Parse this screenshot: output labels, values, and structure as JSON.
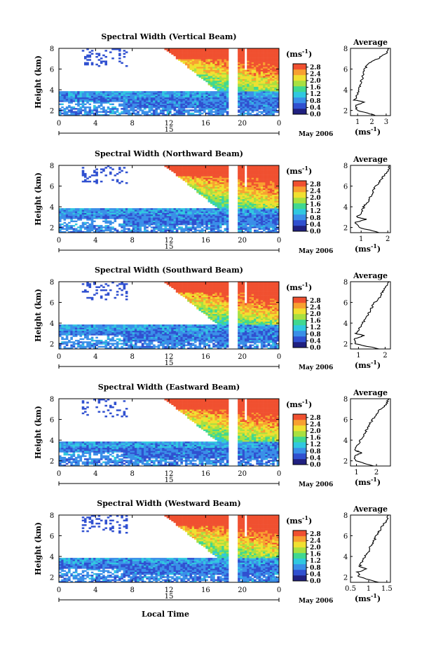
{
  "figure": {
    "bottom_xlabel": "Local Time"
  },
  "chart_data": [
    {
      "type": "heatmap",
      "title": "Spectral Width (Vertical Beam)",
      "ylabel": "Height (km)",
      "unit_label": "(ms",
      "unit_exp": "-1",
      "xlim": [
        0,
        24
      ],
      "xticks": [
        "0",
        "4",
        "8",
        "12",
        "16",
        "20",
        "0"
      ],
      "ylim": [
        1.5,
        8
      ],
      "yticks": [
        "2",
        "4",
        "6",
        "8"
      ],
      "date_day": "15",
      "date_text": "May 2006",
      "colorbar_ticks": [
        "0.0",
        "0.4",
        "0.8",
        "1.2",
        "1.6",
        "2.0",
        "2.4",
        "2.8"
      ],
      "colorbar_range": [
        0.0,
        3.0
      ],
      "profile": {
        "title": "Average",
        "xlabel": "(ms",
        "xlabel_exp": "-1",
        "xticks": [
          "1",
          "2",
          "3"
        ],
        "xlim": [
          0.5,
          3.3
        ],
        "ylim": [
          1.5,
          8
        ],
        "yticks": [
          "2",
          "4",
          "6",
          "8"
        ],
        "height": [
          1.5,
          2.0,
          2.5,
          2.8,
          3.0,
          3.4,
          4.0,
          4.5,
          5.0,
          5.5,
          6.0,
          6.5,
          7.0,
          7.5,
          8.0
        ],
        "width": [
          2.3,
          1.0,
          0.8,
          1.5,
          0.8,
          0.9,
          1.1,
          1.2,
          1.3,
          1.4,
          1.5,
          1.7,
          2.4,
          3.0,
          3.2
        ]
      }
    },
    {
      "type": "heatmap",
      "title": "Spectral Width (Northward Beam)",
      "ylabel": "Height (km)",
      "unit_label": "(ms",
      "unit_exp": "-1",
      "xlim": [
        0,
        24
      ],
      "xticks": [
        "0",
        "4",
        "8",
        "12",
        "16",
        "20",
        "0"
      ],
      "ylim": [
        1.5,
        8
      ],
      "yticks": [
        "2",
        "4",
        "6",
        "8"
      ],
      "date_day": "15",
      "date_text": "May 2006",
      "colorbar_ticks": [
        "0.0",
        "0.4",
        "0.8",
        "1.2",
        "1.6",
        "2.0",
        "2.4",
        "2.8"
      ],
      "colorbar_range": [
        0.0,
        3.0
      ],
      "profile": {
        "title": "Average",
        "xlabel": "(ms",
        "xlabel_exp": "-1",
        "xticks": [
          "1",
          "2"
        ],
        "xlim": [
          0.6,
          2.1
        ],
        "ylim": [
          1.5,
          8
        ],
        "yticks": [
          "2",
          "4",
          "6",
          "8"
        ],
        "height": [
          1.5,
          2.0,
          2.5,
          2.8,
          3.0,
          3.4,
          4.0,
          4.5,
          5.0,
          5.5,
          6.0,
          6.5,
          7.0,
          7.5,
          8.0
        ],
        "width": [
          1.7,
          0.9,
          0.8,
          1.2,
          0.85,
          1.0,
          1.1,
          1.25,
          1.35,
          1.45,
          1.55,
          1.7,
          1.85,
          2.0,
          2.05
        ]
      }
    },
    {
      "type": "heatmap",
      "title": "Spectral Width (Southward Beam)",
      "ylabel": "Height (km)",
      "unit_label": "(ms",
      "unit_exp": "-1",
      "xlim": [
        0,
        24
      ],
      "xticks": [
        "0",
        "4",
        "8",
        "12",
        "16",
        "20",
        "0"
      ],
      "ylim": [
        1.5,
        8
      ],
      "yticks": [
        "2",
        "4",
        "6",
        "8"
      ],
      "date_day": "15",
      "date_text": "May 2006",
      "colorbar_ticks": [
        "0.0",
        "0.4",
        "0.8",
        "1.2",
        "1.6",
        "2.0",
        "2.4",
        "2.8"
      ],
      "colorbar_range": [
        0.0,
        3.0
      ],
      "profile": {
        "title": "Average",
        "xlabel": "(ms",
        "xlabel_exp": "-1",
        "xticks": [
          "1",
          "2"
        ],
        "xlim": [
          0.7,
          2.2
        ],
        "ylim": [
          1.5,
          8
        ],
        "yticks": [
          "2",
          "4",
          "6",
          "8"
        ],
        "height": [
          1.5,
          2.0,
          2.5,
          2.8,
          3.0,
          3.4,
          4.0,
          4.5,
          5.0,
          5.5,
          6.0,
          6.5,
          7.0,
          7.5,
          8.0
        ],
        "width": [
          1.8,
          0.9,
          0.85,
          1.2,
          0.9,
          1.0,
          1.15,
          1.3,
          1.4,
          1.5,
          1.6,
          1.8,
          1.9,
          2.05,
          2.15
        ]
      }
    },
    {
      "type": "heatmap",
      "title": "Spectral Width (Eastward Beam)",
      "ylabel": "Height (km)",
      "unit_label": "(ms",
      "unit_exp": "-1",
      "xlim": [
        0,
        24
      ],
      "xticks": [
        "0",
        "4",
        "8",
        "12",
        "16",
        "20",
        "0"
      ],
      "ylim": [
        1.5,
        8
      ],
      "yticks": [
        "2",
        "4",
        "6",
        "8"
      ],
      "date_day": "15",
      "date_text": "May 2006",
      "colorbar_ticks": [
        "0.0",
        "0.4",
        "0.8",
        "1.2",
        "1.6",
        "2.0",
        "2.4",
        "2.8"
      ],
      "colorbar_range": [
        0.0,
        3.0
      ],
      "profile": {
        "title": "Average",
        "xlabel": "(ms",
        "xlabel_exp": "-1",
        "xticks": [
          "1",
          "2"
        ],
        "xlim": [
          0.7,
          2.7
        ],
        "ylim": [
          1.5,
          8
        ],
        "yticks": [
          "2",
          "4",
          "6",
          "8"
        ],
        "height": [
          1.5,
          2.0,
          2.5,
          2.8,
          3.0,
          3.4,
          4.0,
          4.5,
          5.0,
          5.5,
          6.0,
          6.5,
          7.0,
          7.5,
          8.0
        ],
        "width": [
          1.9,
          0.95,
          0.9,
          1.3,
          0.9,
          1.05,
          1.2,
          1.35,
          1.5,
          1.65,
          1.8,
          2.0,
          2.2,
          2.5,
          2.6
        ]
      }
    },
    {
      "type": "heatmap",
      "title": "Spectral Width (Westward Beam)",
      "ylabel": "Height (km)",
      "unit_label": "(ms",
      "unit_exp": "-1",
      "xlim": [
        0,
        24
      ],
      "xticks": [
        "0",
        "4",
        "8",
        "12",
        "16",
        "20",
        "0"
      ],
      "ylim": [
        1.5,
        8
      ],
      "yticks": [
        "2",
        "4",
        "6",
        "8"
      ],
      "date_day": "15",
      "date_text": "May 2006",
      "colorbar_ticks": [
        "0.0",
        "0.4",
        "0.8",
        "1.2",
        "1.6",
        "2.0",
        "2.4",
        "2.8"
      ],
      "colorbar_range": [
        0.0,
        3.0
      ],
      "profile": {
        "title": "Average",
        "xlabel": "(ms",
        "xlabel_exp": "-1",
        "xticks": [
          "0.5",
          "1",
          "1.5"
        ],
        "xlim": [
          0.5,
          1.6
        ],
        "ylim": [
          1.5,
          8
        ],
        "yticks": [
          "2",
          "4",
          "6",
          "8"
        ],
        "height": [
          1.5,
          2.0,
          2.5,
          2.8,
          3.0,
          3.4,
          4.0,
          4.5,
          5.0,
          5.5,
          6.0,
          6.5,
          7.0,
          7.5,
          8.0
        ],
        "width": [
          1.3,
          0.75,
          0.7,
          0.95,
          0.75,
          0.8,
          0.9,
          1.0,
          1.05,
          1.15,
          1.2,
          1.3,
          1.4,
          1.5,
          1.55
        ]
      }
    }
  ],
  "colors": {
    "colormap": [
      "#202080",
      "#3050d0",
      "#3a8fe8",
      "#30c8e0",
      "#40d890",
      "#a8e040",
      "#f0e030",
      "#f8a030",
      "#f05030"
    ],
    "missing": "#ffffff"
  }
}
